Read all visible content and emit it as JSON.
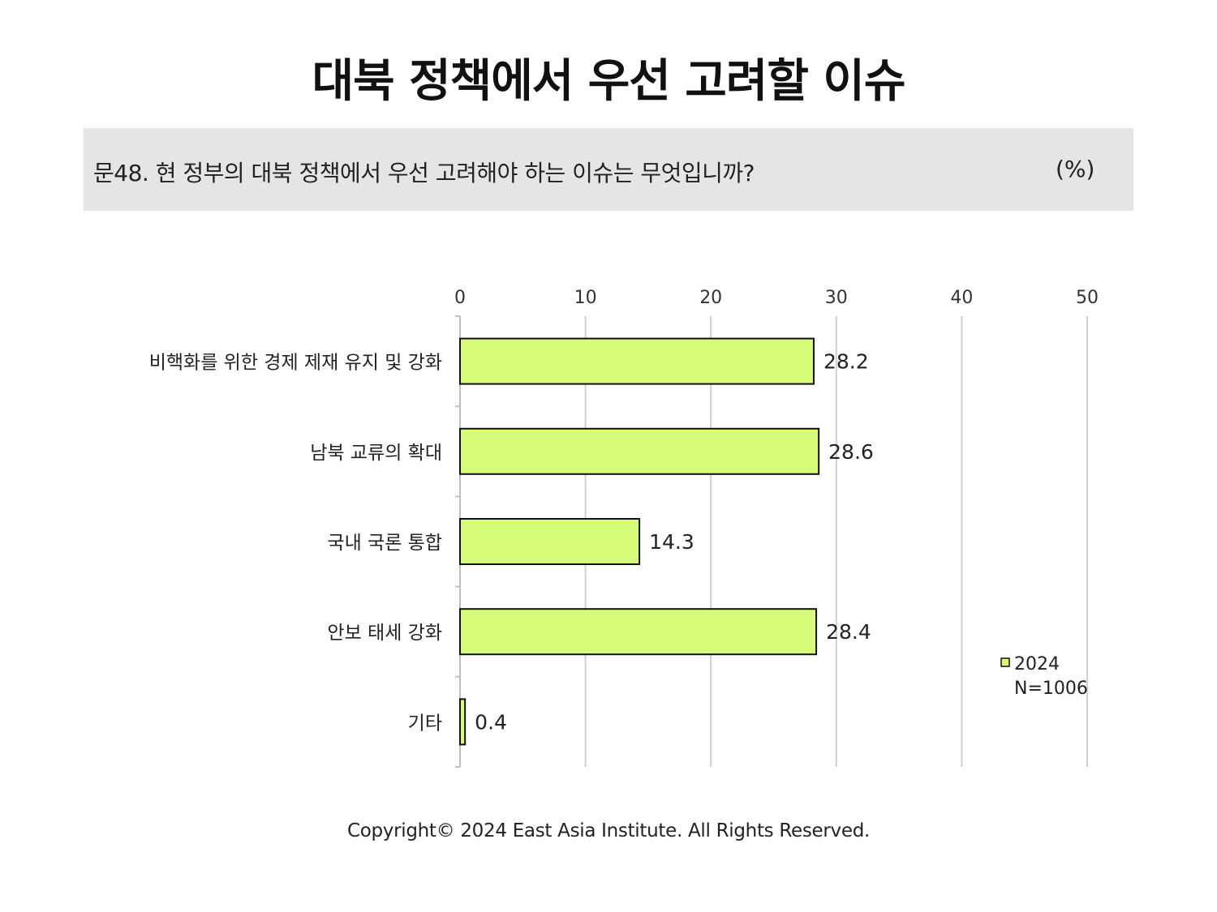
{
  "title": "대북 정책에서 우선 고려할 이슈",
  "question": "문48. 현 정부의 대북 정책에서 우선 고려해야 하는 이슈는 무엇입니까?",
  "unit": "(%)",
  "copyright": "Copyright© 2024 East Asia Institute. All Rights Reserved.",
  "chart_data": {
    "type": "bar",
    "orientation": "horizontal",
    "categories": [
      "비핵화를 위한 경제 제재 유지 및 강화",
      "남북 교류의 확대",
      "국내 국론 통합",
      "안보 태세 강화",
      "기타"
    ],
    "series": [
      {
        "name": "2024",
        "values": [
          28.2,
          28.6,
          14.3,
          28.4,
          0.4
        ],
        "color": "#d6fb78"
      }
    ],
    "data_labels": [
      "28.2",
      "28.6",
      "14.3",
      "28.4",
      "0.4"
    ],
    "xlim": [
      0,
      50
    ],
    "xticks": [
      0,
      10,
      20,
      30,
      40,
      50
    ],
    "grid": true,
    "legend": {
      "label": "2024",
      "note": "N=1006",
      "position": "bottom-right"
    }
  }
}
